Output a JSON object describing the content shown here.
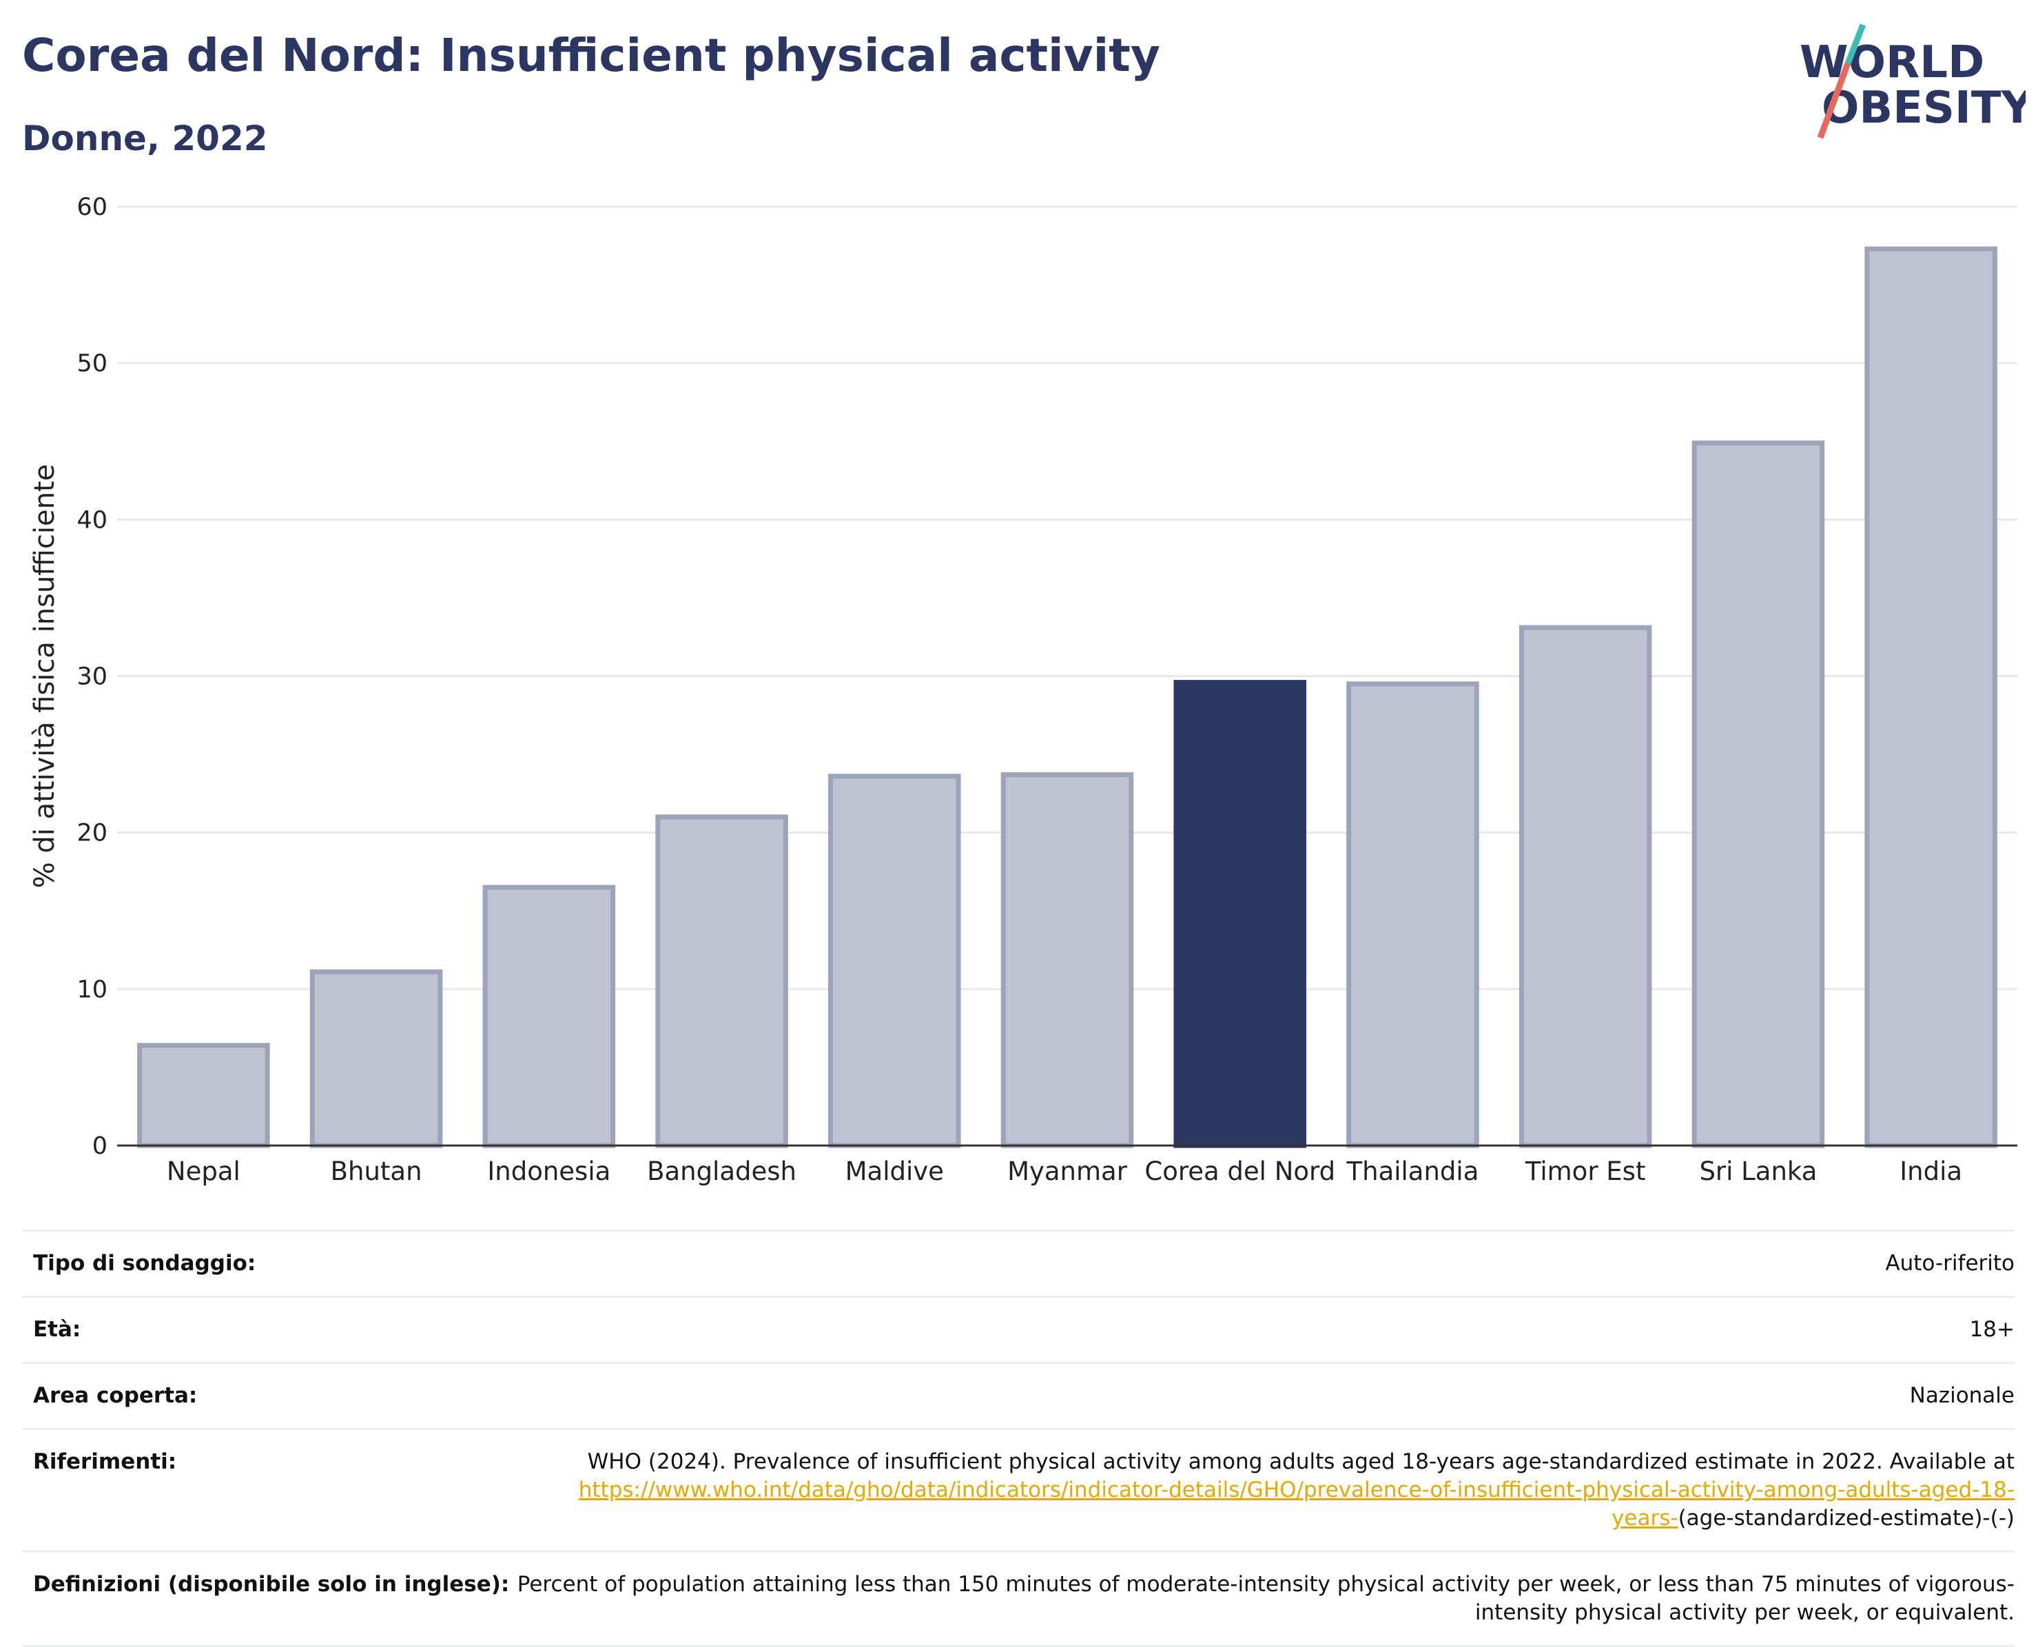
{
  "header": {
    "title": "Corea del Nord: Insufficient physical activity",
    "subtitle": "Donne, 2022"
  },
  "logo": {
    "line1": "WORLD",
    "line2": "OBESITY"
  },
  "colors": {
    "highlight": "#2b3663",
    "bar": "#bfc3d1",
    "bar_border": "#9da3b8",
    "title": "#2b3663",
    "grid": "#e6e8ee",
    "link": "#e7a800"
  },
  "chart_data": {
    "type": "bar",
    "title": "Corea del Nord: Insufficient physical activity",
    "subtitle": "Donne, 2022",
    "xlabel": "",
    "ylabel": "% di attività fisica insufficiente",
    "ylim": [
      0,
      60
    ],
    "yticks": [
      0,
      10,
      20,
      30,
      40,
      50,
      60
    ],
    "grid": true,
    "highlight": "Corea del Nord",
    "categories": [
      "Nepal",
      "Bhutan",
      "Indonesia",
      "Bangladesh",
      "Maldive",
      "Myanmar",
      "Corea del Nord",
      "Thailandia",
      "Timor Est",
      "Sri Lanka",
      "India"
    ],
    "values": [
      6.4,
      11.1,
      16.5,
      21.0,
      23.6,
      23.7,
      29.6,
      29.5,
      33.1,
      44.9,
      57.3
    ]
  },
  "info": {
    "rows": [
      {
        "label": "Tipo di sondaggio:",
        "value": "Auto-riferito"
      },
      {
        "label": "Età:",
        "value": "18+"
      },
      {
        "label": "Area coperta:",
        "value": "Nazionale"
      },
      {
        "label": "Riferimenti:",
        "value": "WHO (2024). Prevalence of insufficient physical activity among adults aged 18-years age-standardized estimate in 2022. Available at",
        "link": "https://www.who.int/data/gho/data/indicators/indicator-details/GHO/prevalence-of-insufficient-physical-activity-among-adults-aged-18-years-",
        "suffix": "(age-standardized-estimate)-(-)"
      },
      {
        "label": "Definizioni (disponibile solo in inglese):",
        "value": "Percent of population attaining less than 150 minutes of moderate-intensity physical activity per week, or less than 75 minutes of vigorous-intensity physical activity per week, or equivalent."
      }
    ]
  }
}
